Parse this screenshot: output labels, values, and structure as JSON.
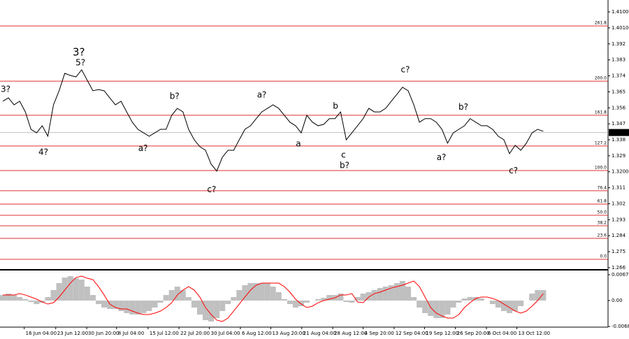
{
  "chart_data": [
    {
      "type": "line",
      "color": "#000000",
      "values": [
        1.3597,
        1.3616,
        1.3577,
        1.3597,
        1.3537,
        1.3439,
        1.3419,
        1.3459,
        1.34,
        1.3577,
        1.3656,
        1.3754,
        1.3742,
        1.3734,
        1.3774,
        1.3715,
        1.3656,
        1.3663,
        1.3656,
        1.3616,
        1.3577,
        1.3597,
        1.3537,
        1.3479,
        1.3439,
        1.3419,
        1.34,
        1.3419,
        1.3439,
        1.3439,
        1.3518,
        1.3557,
        1.3537,
        1.3439,
        1.338,
        1.3341,
        1.3321,
        1.3243,
        1.3204,
        1.3282,
        1.3321,
        1.3321,
        1.338,
        1.3439,
        1.3459,
        1.3499,
        1.3537,
        1.3557,
        1.3577,
        1.3557,
        1.3518,
        1.3479,
        1.3459,
        1.3419,
        1.3518,
        1.3479,
        1.3459,
        1.3467,
        1.3499,
        1.3499,
        1.3537,
        1.338,
        1.3419,
        1.3459,
        1.3499,
        1.3557,
        1.3537,
        1.3537,
        1.3557,
        1.3597,
        1.3636,
        1.3676,
        1.3656,
        1.3577,
        1.3479,
        1.3499,
        1.3499,
        1.3479,
        1.3439,
        1.3361,
        1.3419,
        1.3439,
        1.3459,
        1.3499,
        1.3479,
        1.3459,
        1.3459,
        1.3439,
        1.34,
        1.338,
        1.3302,
        1.3349,
        1.3321,
        1.3361,
        1.3419,
        1.3439,
        1.3428
      ],
      "xlim": [
        0,
        108
      ],
      "ylim": [
        1.2652,
        1.4167
      ],
      "yticks": [
        {
          "value": 1.41,
          "label": "1.4100"
        },
        {
          "value": 1.401,
          "label": "1.4010"
        },
        1.392,
        1.383,
        1.374,
        1.365,
        1.356,
        1.347,
        1.338,
        1.329,
        {
          "value": 1.32,
          "label": "1.3200"
        },
        1.311,
        1.302,
        1.293,
        1.284,
        1.275,
        1.266
      ],
      "last_price": 1.3421,
      "fib_levels": [
        {
          "label": "261.8",
          "value": 1.4021
        },
        {
          "label": "200.0",
          "value": 1.371
        },
        {
          "label": "161.8",
          "value": 1.3518
        },
        {
          "label": "127.2",
          "value": 1.3345
        },
        {
          "label": "100.0",
          "value": 1.3207
        },
        {
          "label": "76.4",
          "value": 1.3093
        },
        {
          "label": "61.8",
          "value": 1.3018
        },
        {
          "label": "50.0",
          "value": 1.2955
        },
        {
          "label": "38.2",
          "value": 1.2896
        },
        {
          "label": "23.6",
          "value": 1.2825
        },
        {
          "label": "0.0",
          "value": 1.2707
        }
      ],
      "fib_color": "#e03030",
      "annotations": [
        {
          "text": "3?",
          "color": "#e02020",
          "x": 1,
          "y": 1.3664
        },
        {
          "text": "4?",
          "color": "#e02020",
          "x": 7.7,
          "y": 1.331
        },
        {
          "text": "3?",
          "color": "#2020e0",
          "x": 14,
          "y": 1.3872
        },
        {
          "text": "5?",
          "color": "#e02020",
          "x": 14.3,
          "y": 1.3813
        },
        {
          "text": "a?",
          "color": "#e02020",
          "x": 25.4,
          "y": 1.333
        },
        {
          "text": "b?",
          "color": "#e02020",
          "x": 31,
          "y": 1.3624
        },
        {
          "text": "c?",
          "color": "#e02020",
          "x": 37.6,
          "y": 1.3098
        },
        {
          "text": "a?",
          "color": "#e02020",
          "x": 46.5,
          "y": 1.3632
        },
        {
          "text": "a",
          "color": "#2020e0",
          "x": 53,
          "y": 1.3357
        },
        {
          "text": "b",
          "color": "#2020e0",
          "x": 59.6,
          "y": 1.3569
        },
        {
          "text": "c",
          "color": "#2020e0",
          "x": 61,
          "y": 1.3294
        },
        {
          "text": "b?",
          "color": "#e02020",
          "x": 61.2,
          "y": 1.3235
        },
        {
          "text": "c?",
          "color": "#e02020",
          "x": 72,
          "y": 1.3774
        },
        {
          "text": "a?",
          "color": "#e02020",
          "x": 78.4,
          "y": 1.3279
        },
        {
          "text": "b?",
          "color": "#e02020",
          "x": 82.3,
          "y": 1.3562
        },
        {
          "text": "c?",
          "color": "#e02020",
          "x": 91.2,
          "y": 1.3204
        }
      ]
    },
    {
      "type": "oscillator",
      "xlim": [
        0,
        108
      ],
      "ylim": [
        -0.00696,
        0.0077
      ],
      "yticks": [
        0.00678,
        {
          "value": 0,
          "label": "0.00"
        },
        -0.00681
      ],
      "xticks": [
        {
          "value": 4.3,
          "label": "16 Jun 04:00"
        },
        {
          "value": 9.9,
          "label": "23 Jun 12:00"
        },
        {
          "value": 15.4,
          "label": "30 Jun 20:00"
        },
        {
          "value": 20.7,
          "label": "8 Jul 04:00"
        },
        {
          "value": 26.3,
          "label": "15 Jul 12:00"
        },
        {
          "value": 31.8,
          "label": "22 Jul 20:00"
        },
        {
          "value": 37.2,
          "label": "30 Jul 04:00"
        },
        {
          "value": 42.7,
          "label": "6 Aug 12:00"
        },
        {
          "value": 48.1,
          "label": "13 Aug 20:00"
        },
        {
          "value": 53.6,
          "label": "21 Aug 04:00"
        },
        {
          "value": 59.1,
          "label": "28 Aug 12:00"
        },
        {
          "value": 64.5,
          "label": "4 Sep 20:00"
        },
        {
          "value": 70,
          "label": "12 Sep 04:00"
        },
        {
          "value": 75.4,
          "label": "19 Sep 12:00"
        },
        {
          "value": 80.9,
          "label": "26 Sep 20:00"
        },
        {
          "value": 86.4,
          "label": "6 Oct 04:00"
        },
        {
          "value": 91.8,
          "label": "13 Oct 12:00"
        }
      ],
      "series": [
        {
          "type": "bar",
          "color": "#c0c0c0",
          "values": [
            0.00146,
            0.00183,
            0.00146,
            0.00092,
            0.00037,
            -0.00037,
            -0.00092,
            -0.00055,
            0.00092,
            0.00275,
            0.00458,
            0.00604,
            0.00641,
            0.00586,
            0.00549,
            0.00366,
            0.00146,
            -0.00092,
            -0.00183,
            -0.0022,
            -0.0022,
            -0.00275,
            -0.00329,
            -0.00366,
            -0.00366,
            -0.00329,
            -0.00275,
            -0.00183,
            -0.00055,
            0.00146,
            0.00275,
            0.00366,
            0.00275,
            0.00092,
            -0.00183,
            -0.00366,
            -0.00512,
            -0.00549,
            -0.00458,
            -0.00275,
            -0.00092,
            0.00092,
            0.00275,
            0.00403,
            0.00458,
            0.00458,
            0.00458,
            0.00458,
            0.00366,
            0.0022,
            0.00037,
            -0.00092,
            -0.00183,
            -0.00146,
            -0.00055,
            0,
            0.00037,
            0.00073,
            0.00146,
            0.00146,
            0.00183,
            -0.00037,
            -0.00055,
            0.00092,
            0.00183,
            0.0022,
            0.00275,
            0.00329,
            0.00366,
            0.00403,
            0.00458,
            0.00512,
            0.00366,
            0.00092,
            -0.00183,
            -0.00329,
            -0.00403,
            -0.00458,
            -0.00458,
            -0.00366,
            -0.00183,
            -0.00055,
            0.00055,
            0.00092,
            0.00092,
            0.00055,
            0,
            -0.00092,
            -0.00183,
            -0.00275,
            -0.00329,
            -0.00275,
            -0.00146,
            0,
            0.00183,
            0.00275,
            0.00275
          ]
        },
        {
          "type": "line",
          "color": "#ff0000",
          "values": [
            0.00146,
            0.00146,
            0.00146,
            0.00183,
            0.00146,
            0.00092,
            0.00037,
            -0.00037,
            -0.00092,
            -0.00055,
            0.00092,
            0.00275,
            0.00458,
            0.00604,
            0.00641,
            0.00586,
            0.00549,
            0.00366,
            0.00146,
            -0.00092,
            -0.00183,
            -0.0022,
            -0.0022,
            -0.00275,
            -0.00329,
            -0.00366,
            -0.00366,
            -0.00329,
            -0.00275,
            -0.00183,
            -0.00055,
            0.00146,
            0.00275,
            0.00366,
            0.00275,
            0.00092,
            -0.00183,
            -0.00366,
            -0.00512,
            -0.00549,
            -0.00458,
            -0.00275,
            -0.00092,
            0.00092,
            0.00275,
            0.00403,
            0.00458,
            0.00458,
            0.00458,
            0.00458,
            0.00366,
            0.0022,
            0.00037,
            -0.00092,
            -0.00183,
            -0.00146,
            -0.00055,
            0,
            0.00037,
            0.00073,
            0.00146,
            0.00146,
            0.00183,
            -0.00037,
            -0.00055,
            0.00092,
            0.00183,
            0.0022,
            0.00275,
            0.00329,
            0.00366,
            0.00403,
            0.00458,
            0.00512,
            0.00366,
            0.00092,
            -0.00183,
            -0.00329,
            -0.00403,
            -0.00458,
            -0.00458,
            -0.00366,
            -0.00183,
            -0.00055,
            0.00055,
            0.00092,
            0.00092,
            0.00055,
            0,
            -0.00092,
            -0.00183,
            -0.00275,
            -0.00329,
            -0.00275,
            -0.00146,
            0,
            0.00183
          ]
        }
      ]
    }
  ]
}
